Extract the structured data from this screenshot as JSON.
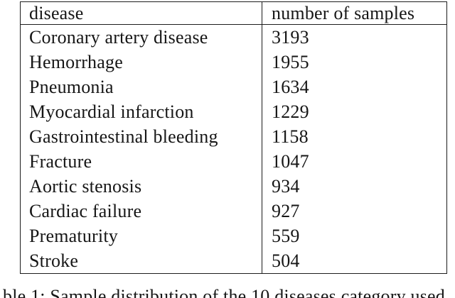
{
  "table": {
    "columns": [
      "disease",
      "number of samples"
    ],
    "rows": [
      {
        "disease": "Coronary artery disease",
        "samples": "3193"
      },
      {
        "disease": "Hemorrhage",
        "samples": "1955"
      },
      {
        "disease": "Pneumonia",
        "samples": "1634"
      },
      {
        "disease": "Myocardial infarction",
        "samples": "1229"
      },
      {
        "disease": "Gastrointestinal bleeding",
        "samples": "1158"
      },
      {
        "disease": "Fracture",
        "samples": "1047"
      },
      {
        "disease": "Aortic stenosis",
        "samples": "934"
      },
      {
        "disease": "Cardiac failure",
        "samples": "927"
      },
      {
        "disease": "Prematurity",
        "samples": "559"
      },
      {
        "disease": "Stroke",
        "samples": "504"
      }
    ]
  },
  "caption": {
    "fragment": "ble 1: Sample distribution of the 10 diseases category used"
  },
  "colors": {
    "background": "#ffffff",
    "text": "#161616",
    "border": "#1c1c1c"
  }
}
